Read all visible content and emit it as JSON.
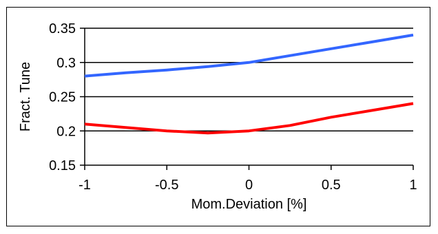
{
  "chart_data": {
    "type": "line",
    "xlabel": "Mom.Deviation [%]",
    "ylabel": "Fract. Tune",
    "xlim": [
      -1,
      1
    ],
    "ylim": [
      0.15,
      0.35
    ],
    "x_ticks": [
      -1,
      -0.5,
      0,
      0.5,
      1
    ],
    "y_ticks": [
      0.15,
      0.2,
      0.25,
      0.3,
      0.35
    ],
    "x_tick_labels": [
      "-1",
      "-0.5",
      "0",
      "0.5",
      "1"
    ],
    "y_tick_labels": [
      "0.15",
      "0.2",
      "0.25",
      "0.3",
      "0.35"
    ],
    "grid": "horizontal",
    "legend": "none",
    "series": [
      {
        "color": "#3366ff",
        "x": [
          -1,
          -0.75,
          -0.5,
          -0.25,
          0,
          0.25,
          0.5,
          0.75,
          1
        ],
        "values": [
          0.28,
          0.285,
          0.289,
          0.294,
          0.3,
          0.31,
          0.32,
          0.33,
          0.34
        ]
      },
      {
        "color": "#ff0000",
        "x": [
          -1,
          -0.75,
          -0.5,
          -0.25,
          0,
          0.25,
          0.5,
          0.75,
          1
        ],
        "values": [
          0.21,
          0.205,
          0.2,
          0.197,
          0.2,
          0.208,
          0.22,
          0.23,
          0.24
        ]
      }
    ]
  }
}
